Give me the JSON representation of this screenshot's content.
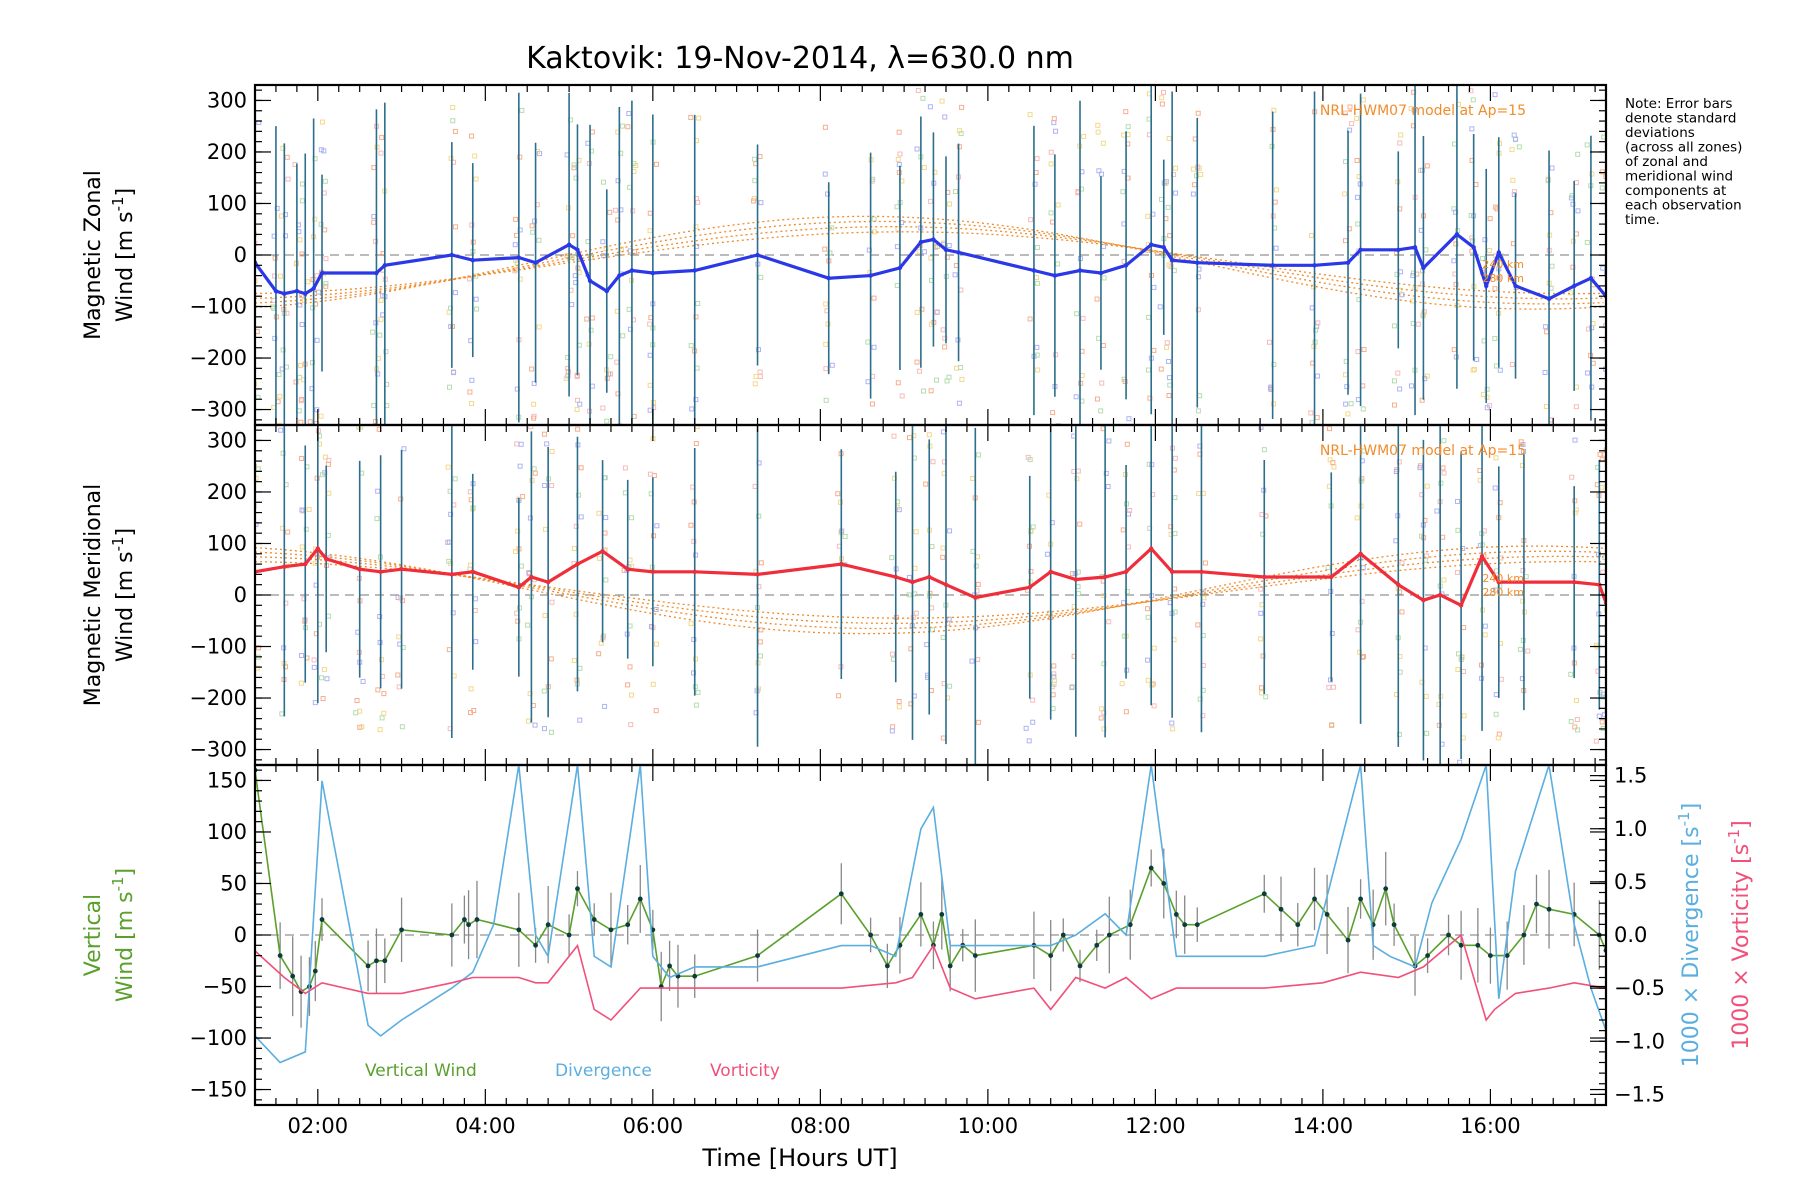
{
  "chart_data": [
    {
      "type": "line",
      "title": "Kaktovik: 19-Nov-2014, λ=630.0 nm",
      "ylabel_line1": "Magnetic Zonal",
      "ylabel_line2": "Wind [m s",
      "ylabel_sup": "-1",
      "ylabel_end": "]",
      "ylim": [
        -330,
        330
      ],
      "yticks": [
        -300,
        -200,
        -100,
        0,
        100,
        200,
        300
      ],
      "model_label": "NRL-HWM07 model at Ap=15",
      "model_heights": [
        "240 km",
        "280 km"
      ],
      "grid": false,
      "series": [
        {
          "color": "#2a38e8",
          "x": [
            1.25,
            1.5,
            1.6,
            1.75,
            1.85,
            1.95,
            2.05,
            2.7,
            2.8,
            3.6,
            3.85,
            4.4,
            4.6,
            5.0,
            5.1,
            5.25,
            5.45,
            5.6,
            5.75,
            6.0,
            6.5,
            7.25,
            8.1,
            8.6,
            8.95,
            9.2,
            9.35,
            9.5,
            9.65,
            10.55,
            10.8,
            11.1,
            11.35,
            11.65,
            11.95,
            12.1,
            12.2,
            12.5,
            13.4,
            13.9,
            14.3,
            14.45,
            14.9,
            15.1,
            15.2,
            15.6,
            15.8,
            15.95,
            16.1,
            16.3,
            16.7,
            17.0,
            17.2,
            17.38
          ],
          "values": [
            -15,
            -70,
            -75,
            -70,
            -75,
            -65,
            -35,
            -35,
            -20,
            0,
            -10,
            -5,
            -15,
            20,
            10,
            -50,
            -70,
            -40,
            -30,
            -35,
            -30,
            0,
            -45,
            -40,
            -25,
            25,
            30,
            10,
            5,
            -30,
            -40,
            -30,
            -35,
            -20,
            20,
            15,
            -10,
            -15,
            -20,
            -20,
            -15,
            10,
            10,
            15,
            -25,
            40,
            15,
            -60,
            5,
            -60,
            -85,
            -60,
            -45,
            -80
          ]
        }
      ]
    },
    {
      "type": "line",
      "ylabel_line1": "Magnetic Meridional",
      "ylabel_line2": "Wind [m s",
      "ylabel_sup": "-1",
      "ylabel_end": "]",
      "ylim": [
        -330,
        330
      ],
      "yticks": [
        -300,
        -200,
        -100,
        0,
        100,
        200,
        300
      ],
      "model_label": "NRL-HWM07 model at Ap=15",
      "model_heights": [
        "240 km",
        "280 km"
      ],
      "grid": false,
      "series": [
        {
          "color": "#f02d3a",
          "x": [
            1.25,
            1.6,
            1.85,
            2.0,
            2.1,
            2.5,
            2.75,
            3.0,
            3.6,
            3.85,
            4.4,
            4.55,
            4.75,
            5.1,
            5.4,
            5.7,
            6.0,
            6.5,
            7.25,
            8.25,
            8.9,
            9.1,
            9.3,
            9.5,
            9.85,
            10.5,
            10.75,
            11.05,
            11.4,
            11.65,
            11.95,
            12.2,
            12.55,
            13.3,
            14.1,
            14.45,
            14.9,
            15.2,
            15.4,
            15.65,
            15.9,
            16.1,
            16.4,
            17.0,
            17.3,
            17.38
          ],
          "values": [
            45,
            55,
            60,
            90,
            70,
            50,
            45,
            50,
            40,
            45,
            15,
            35,
            25,
            60,
            85,
            50,
            45,
            45,
            40,
            60,
            35,
            25,
            35,
            20,
            -5,
            15,
            45,
            30,
            35,
            45,
            90,
            45,
            45,
            35,
            35,
            80,
            20,
            -10,
            0,
            -20,
            75,
            25,
            25,
            25,
            20,
            -15
          ]
        }
      ]
    },
    {
      "type": "line",
      "ylabel_line1": "Vertical",
      "ylabel_line2": "Wind [m s",
      "ylabel_sup": "-1",
      "ylabel_end": "]",
      "ylim": [
        -165,
        165
      ],
      "yticks": [
        -150,
        -100,
        -50,
        0,
        50,
        100,
        150
      ],
      "y2label_div": "1000 × Divergence [s",
      "y2label_vort": "1000 × Vorticity [s",
      "y2label_sup": "-1",
      "y2label_end": "]",
      "y2lim": [
        -1.6,
        1.6
      ],
      "y2ticks": [
        -1.5,
        -1.0,
        -0.5,
        0.0,
        0.5,
        1.0,
        1.5
      ],
      "y2ticklabels": [
        "−1.5",
        "−1.0",
        "−0.5",
        "0.0",
        "0.5",
        "1.0",
        "1.5"
      ],
      "legend": [
        "Vertical Wind",
        "Divergence",
        "Vorticity"
      ],
      "legend_position": "bottom-left",
      "xlabel": "Time [Hours UT]",
      "xlim": [
        1.25,
        17.38
      ],
      "xticks": [
        2,
        4,
        6,
        8,
        10,
        12,
        14,
        16
      ],
      "xticklabels": [
        "02:00",
        "04:00",
        "06:00",
        "08:00",
        "10:00",
        "12:00",
        "14:00",
        "16:00"
      ],
      "series": [
        {
          "name": "Vertical Wind",
          "color": "#5aa02c",
          "axis": "left",
          "x": [
            1.25,
            1.55,
            1.7,
            1.8,
            1.9,
            1.97,
            2.05,
            2.6,
            2.7,
            2.8,
            3.0,
            3.6,
            3.75,
            3.8,
            3.9,
            4.4,
            4.6,
            4.75,
            5.0,
            5.1,
            5.3,
            5.5,
            5.7,
            5.85,
            6.0,
            6.1,
            6.2,
            6.3,
            6.5,
            7.25,
            8.25,
            8.6,
            8.8,
            8.95,
            9.2,
            9.35,
            9.45,
            9.55,
            9.7,
            9.85,
            10.55,
            10.75,
            10.9,
            11.1,
            11.3,
            11.45,
            11.7,
            11.95,
            12.1,
            12.25,
            12.35,
            12.5,
            13.3,
            13.5,
            13.7,
            13.9,
            14.05,
            14.3,
            14.45,
            14.6,
            14.75,
            14.85,
            15.1,
            15.25,
            15.5,
            15.65,
            15.85,
            16.0,
            16.2,
            16.4,
            16.55,
            16.7,
            17.0,
            17.3,
            17.38
          ],
          "values": [
            160,
            -20,
            -40,
            -55,
            -50,
            -35,
            15,
            -30,
            -25,
            -25,
            5,
            0,
            15,
            10,
            15,
            5,
            -10,
            10,
            0,
            45,
            15,
            5,
            10,
            35,
            5,
            -50,
            -30,
            -40,
            -40,
            -20,
            40,
            0,
            -30,
            -10,
            20,
            -10,
            20,
            -30,
            -10,
            -20,
            -10,
            -20,
            0,
            -30,
            -10,
            0,
            10,
            65,
            50,
            20,
            10,
            10,
            40,
            25,
            10,
            35,
            20,
            -5,
            35,
            10,
            45,
            10,
            -30,
            -20,
            0,
            -10,
            -10,
            -20,
            -20,
            0,
            30,
            25,
            20,
            0,
            -15
          ]
        },
        {
          "name": "Divergence",
          "color": "#5aaee0",
          "axis": "right",
          "x": [
            1.25,
            1.55,
            1.85,
            2.05,
            2.6,
            2.75,
            3.0,
            3.6,
            3.85,
            4.1,
            4.4,
            4.6,
            4.75,
            5.1,
            5.3,
            5.5,
            5.85,
            6.0,
            6.2,
            6.5,
            7.25,
            8.25,
            8.6,
            8.9,
            9.2,
            9.35,
            9.55,
            9.85,
            10.55,
            10.75,
            11.05,
            11.4,
            11.65,
            11.95,
            12.25,
            12.5,
            13.3,
            13.9,
            14.45,
            14.6,
            14.8,
            15.1,
            15.3,
            15.65,
            15.95,
            16.1,
            16.3,
            16.7,
            17.0,
            17.2,
            17.38
          ],
          "values": [
            -0.95,
            -1.2,
            -1.1,
            1.45,
            -0.85,
            -0.95,
            -0.8,
            -0.5,
            -0.35,
            0.1,
            1.6,
            0.0,
            -0.2,
            1.6,
            -0.2,
            -0.3,
            1.6,
            -0.2,
            -0.4,
            -0.3,
            -0.3,
            -0.1,
            -0.1,
            -0.2,
            1.0,
            1.2,
            -0.1,
            -0.1,
            -0.1,
            -0.1,
            0.0,
            0.2,
            0.0,
            1.6,
            -0.2,
            -0.2,
            -0.2,
            -0.1,
            1.6,
            -0.1,
            -0.2,
            -0.3,
            0.3,
            0.9,
            1.6,
            -0.6,
            0.6,
            1.6,
            0.1,
            -0.5,
            -0.9
          ]
        },
        {
          "name": "Vorticity",
          "color": "#f0507a",
          "axis": "right",
          "x": [
            1.25,
            1.6,
            1.85,
            2.05,
            2.6,
            3.0,
            3.6,
            3.85,
            4.4,
            4.6,
            4.75,
            5.1,
            5.3,
            5.5,
            5.85,
            6.0,
            6.5,
            7.25,
            8.25,
            8.9,
            9.1,
            9.35,
            9.55,
            9.85,
            10.55,
            10.75,
            11.05,
            11.4,
            11.65,
            11.95,
            12.25,
            13.3,
            14.0,
            14.45,
            14.9,
            15.2,
            15.65,
            15.95,
            16.05,
            16.3,
            16.7,
            17.0,
            17.38
          ],
          "values": [
            -0.15,
            -0.4,
            -0.55,
            -0.45,
            -0.55,
            -0.55,
            -0.45,
            -0.4,
            -0.4,
            -0.45,
            -0.45,
            -0.1,
            -0.7,
            -0.8,
            -0.5,
            -0.5,
            -0.5,
            -0.5,
            -0.5,
            -0.45,
            -0.4,
            -0.1,
            -0.5,
            -0.6,
            -0.5,
            -0.7,
            -0.4,
            -0.5,
            -0.4,
            -0.6,
            -0.5,
            -0.5,
            -0.45,
            -0.35,
            -0.4,
            -0.3,
            0.0,
            -0.8,
            -0.7,
            -0.55,
            -0.5,
            -0.45,
            -0.5
          ]
        }
      ]
    }
  ],
  "note": {
    "lines": [
      "Note: Error bars",
      "denote standard",
      "deviations",
      "(across all zones)",
      "of zonal and",
      "meridional wind",
      "components at",
      "each observation",
      "time."
    ]
  }
}
